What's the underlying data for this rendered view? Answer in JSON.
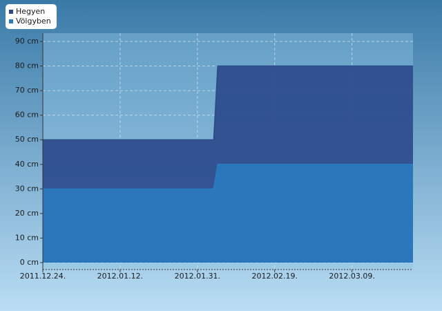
{
  "chart_data": {
    "type": "area",
    "x": [
      "2011.12.24.",
      "2012.02.04.",
      "2012.02.05.",
      "2012.03.24."
    ],
    "series": [
      {
        "name": "Hegyen",
        "color": "#2b4a8c",
        "values": [
          50,
          50,
          80,
          80
        ]
      },
      {
        "name": "Völgyben",
        "color": "#2a7bbf",
        "values": [
          30,
          30,
          40,
          40
        ]
      }
    ],
    "xlim": [
      "2011.12.24.",
      "2012.03.24."
    ],
    "xticks": [
      "2011.12.24.",
      "2012.01.12.",
      "2012.01.31.",
      "2012.02.19.",
      "2012.03.09."
    ],
    "ylim": [
      0,
      90
    ],
    "yticks": [
      {
        "value": 0,
        "label": "0 cm"
      },
      {
        "value": 10,
        "label": "10 cm"
      },
      {
        "value": 20,
        "label": "20 cm"
      },
      {
        "value": 30,
        "label": "30 cm"
      },
      {
        "value": 40,
        "label": "40 cm"
      },
      {
        "value": 50,
        "label": "50 cm"
      },
      {
        "value": 60,
        "label": "60 cm"
      },
      {
        "value": 70,
        "label": "70 cm"
      },
      {
        "value": 80,
        "label": "80 cm"
      },
      {
        "value": 90,
        "label": "90 cm"
      }
    ],
    "grid": true,
    "legend": "top-left"
  }
}
